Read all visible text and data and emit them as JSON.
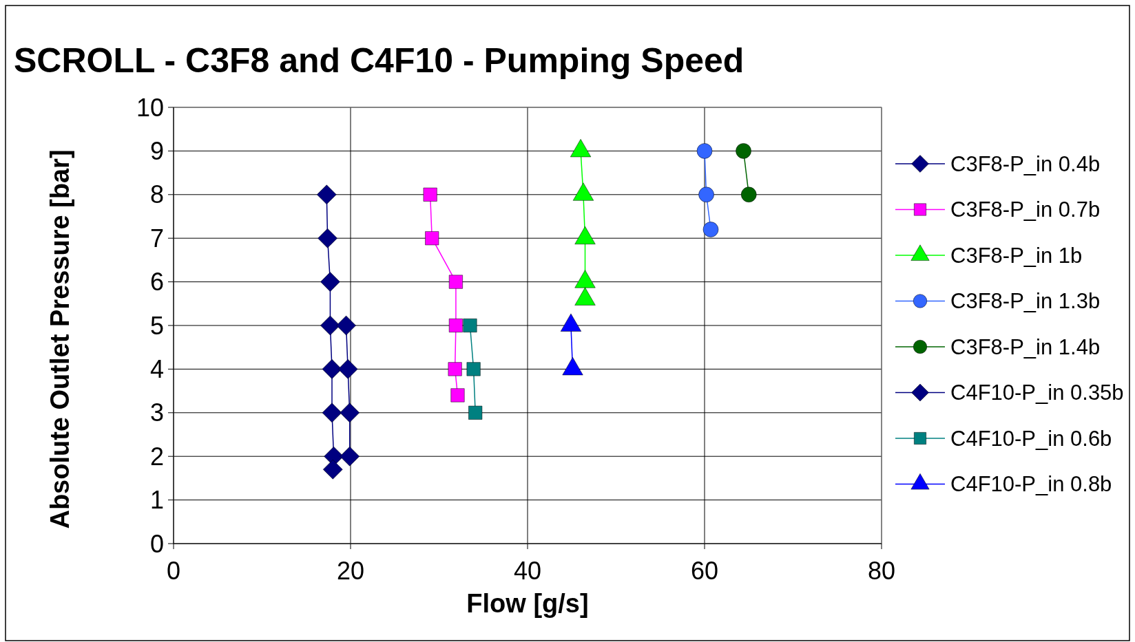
{
  "chart_data": {
    "type": "line",
    "title": "SCROLL - C3F8 and C4F10 - Pumping Speed",
    "xlabel": "Flow [g/s]",
    "ylabel": "Absolute Outlet Pressure [bar]",
    "xlim": [
      0,
      80
    ],
    "xticks": [
      0,
      20,
      40,
      60,
      80
    ],
    "ylim": [
      0,
      10
    ],
    "yticks": [
      0,
      1,
      2,
      3,
      4,
      5,
      6,
      7,
      8,
      9,
      10
    ],
    "grid": true,
    "legend": "right",
    "series": [
      {
        "name": "C3F8-P_in 0.4b",
        "color": "#000080",
        "marker": "diamond",
        "x": [
          17.3,
          17.4,
          17.7,
          17.7,
          17.9,
          17.9,
          18.1,
          18.0
        ],
        "values": [
          8,
          7,
          6,
          5,
          4,
          3,
          2,
          1.7
        ]
      },
      {
        "name": "C3F8-P_in 0.7b",
        "color": "#ff00ff",
        "marker": "square",
        "x": [
          29.0,
          29.2,
          31.9,
          31.9,
          31.8,
          32.1
        ],
        "values": [
          8,
          7,
          6,
          5,
          4,
          3.4
        ]
      },
      {
        "name": "C3F8-P_in 1b",
        "color": "#00ff00",
        "marker": "triangle",
        "x": [
          46.0,
          46.3,
          46.5,
          46.5,
          46.5
        ],
        "values": [
          9,
          8,
          7,
          6,
          5.6
        ]
      },
      {
        "name": "C3F8-P_in 1.3b",
        "color": "#3366ff",
        "marker": "circle",
        "x": [
          60.0,
          60.2,
          60.7
        ],
        "values": [
          9,
          8,
          7.2
        ]
      },
      {
        "name": "C3F8-P_in 1.4b",
        "color": "#006400",
        "marker": "circle",
        "x": [
          64.4,
          65.0
        ],
        "values": [
          9,
          8
        ]
      },
      {
        "name": "C4F10-P_in 0.35b",
        "color": "#000080",
        "marker": "diamond",
        "x": [
          19.5,
          19.7,
          19.9,
          19.9
        ],
        "values": [
          5,
          4,
          3,
          2
        ]
      },
      {
        "name": "C4F10-P_in 0.6b",
        "color": "#008080",
        "marker": "square",
        "x": [
          33.5,
          33.9,
          34.1
        ],
        "values": [
          5,
          4,
          3
        ]
      },
      {
        "name": "C4F10-P_in 0.8b",
        "color": "#0000ff",
        "marker": "triangle",
        "x": [
          44.9,
          45.1
        ],
        "values": [
          5,
          4
        ]
      }
    ]
  }
}
